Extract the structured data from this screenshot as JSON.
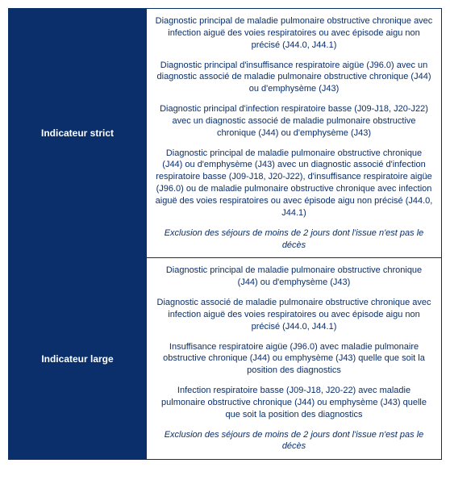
{
  "rows": [
    {
      "header": "Indicateur strict",
      "paragraphs": [
        "Diagnostic principal de maladie pulmonaire obstructive chronique avec infection aiguë des voies respiratoires ou avec épisode aigu non précisé (J44.0, J44.1)",
        "Diagnostic principal d'insuffisance respiratoire aigüe (J96.0) avec un diagnostic associé de maladie pulmonaire obstructive chronique (J44) ou d'emphysème (J43)",
        "Diagnostic principal d'infection respiratoire basse (J09-J18, J20-J22) avec un diagnostic associé de maladie pulmonaire obstructive chronique (J44) ou d'emphysème (J43)",
        "Diagnostic principal de maladie pulmonaire obstructive chronique (J44) ou d'emphysème (J43) avec un diagnostic associé d'infection respiratoire basse (J09-J18, J20-J22), d'insuffisance respiratoire aigüe (J96.0) ou de maladie pulmonaire obstructive chronique avec infection aiguë des voies respiratoires ou avec épisode aigu non précisé (J44.0, J44.1)"
      ],
      "exclusion": "Exclusion des séjours de moins de 2 jours dont l'issue n'est pas le décès"
    },
    {
      "header": "Indicateur large",
      "paragraphs": [
        "Diagnostic principal de maladie pulmonaire obstructive chronique (J44) ou d'emphysème (J43)",
        "Diagnostic associé de maladie pulmonaire obstructive chronique avec infection aiguë des voies respiratoires ou avec épisode aigu non précisé (J44.0, J44.1)",
        "Insuffisance respiratoire aigüe (J96.0) avec maladie pulmonaire obstructive chronique (J44) ou emphysème (J43) quelle que soit la position des diagnostics",
        "Infection respiratoire basse (J09-J18, J20-22) avec maladie pulmonaire obstructive chronique (J44) ou emphysème (J43) quelle que soit la position des diagnostics"
      ],
      "exclusion": "Exclusion des séjours de moins de 2 jours dont l'issue n'est pas le décès"
    }
  ]
}
